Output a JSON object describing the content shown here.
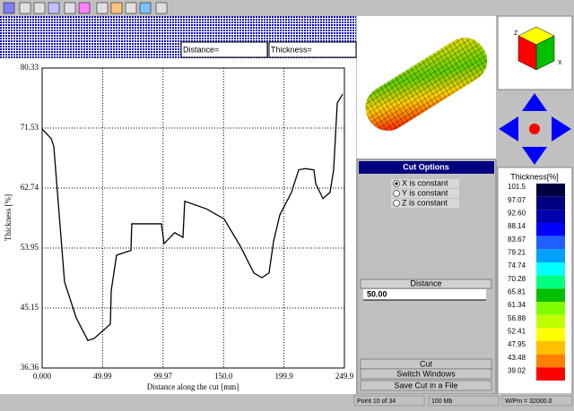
{
  "fields": {
    "distance": "Distance=",
    "thickness": "Thickness="
  },
  "chart_data": {
    "type": "line",
    "xlabel": "Distance along the cut [mm]",
    "ylabel": "Thickness [%]",
    "x": [
      0,
      7.4,
      9.6,
      18.5,
      28.2,
      37.8,
      43.0,
      56.4,
      57.1,
      61.5,
      73.4,
      74.1,
      83.8,
      98.6,
      100.8,
      109.7,
      116.4,
      117.9,
      135.7,
      150.5,
      163.9,
      175.0,
      181.7,
      187.6,
      191.3,
      196.5,
      206.1,
      212.1,
      217.3,
      224.7,
      226.2,
      232.1,
      238.0,
      241.0,
      244.0,
      248.4
    ],
    "values": [
      71.4,
      70.0,
      68.9,
      49.0,
      43.7,
      40.4,
      40.7,
      42.8,
      47.7,
      52.9,
      53.6,
      57.5,
      57.5,
      57.5,
      54.6,
      56.2,
      55.5,
      60.8,
      59.7,
      58.2,
      54.2,
      50.3,
      49.6,
      50.3,
      54.9,
      58.8,
      62.1,
      65.4,
      65.6,
      65.4,
      63.4,
      61.2,
      62.1,
      65.4,
      75.2,
      76.5
    ],
    "color": "#000000",
    "xlim": [
      0,
      249.9
    ],
    "ylim": [
      36.36,
      80.33
    ],
    "xticks": [
      {
        "value": 0,
        "label": "0.000"
      },
      49.99,
      99.97,
      {
        "value": 150,
        "label": "150.0"
      },
      199.9,
      249.9
    ],
    "yticks": [
      36.36,
      45.15,
      53.95,
      62.74,
      71.53,
      80.33
    ],
    "grid": true
  },
  "cube": {
    "axes": [
      "Z",
      "X"
    ]
  },
  "cut_options": {
    "title": "Cut Options",
    "options": [
      "X is constant",
      "Y is constant",
      "Z is constant"
    ],
    "selected": 0,
    "distance_label": "Distance",
    "distance_value": "50.00",
    "buttons": [
      "Cut",
      "Switch Windows",
      "Save Cut in a File"
    ]
  },
  "legend": {
    "title": "Thickness[%]",
    "labels": [
      "101.5",
      "97.07",
      "92.60",
      "88.14",
      "83.67",
      "79.21",
      "74.74",
      "70.28",
      "65.81",
      "61.34",
      "56.88",
      "52.41",
      "47.95",
      "43.48",
      "39.02"
    ],
    "colors": [
      "#000040",
      "#000080",
      "#0000b0",
      "#0000ff",
      "#2060ff",
      "#00a0ff",
      "#00ffff",
      "#00ff80",
      "#00c000",
      "#80ff00",
      "#c0ff00",
      "#ffff00",
      "#ffc000",
      "#ff8000",
      "#ff0000"
    ]
  },
  "status": [
    "Point 10 of 34",
    "100 Mb",
    "W/Pm = 32000.0"
  ]
}
